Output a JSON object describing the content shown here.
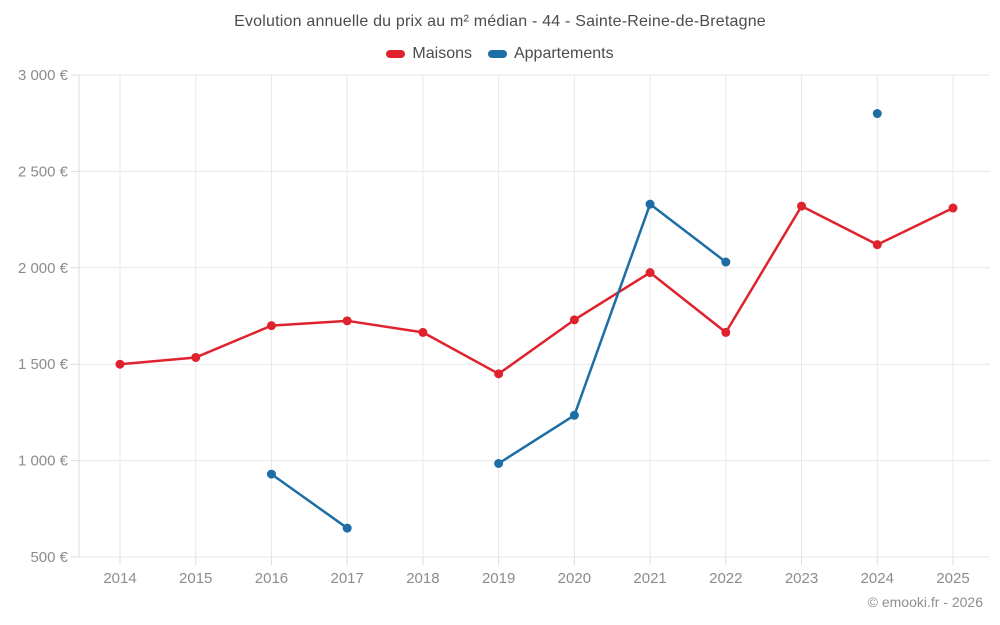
{
  "title": "Evolution annuelle du prix au m² médian - 44 - Sainte-Reine-de-Bretagne",
  "copyright": "© emooki.fr - 2026",
  "colors": {
    "maisons": "#df232e",
    "appartements": "#1c6ea4",
    "grid": "#e8e8e8",
    "axis_line": "#dcdcdc",
    "tick_text": "#8c8c8c",
    "title_text": "#4c4c4c"
  },
  "legend": {
    "items": [
      {
        "label": "Maisons",
        "color_key": "maisons"
      },
      {
        "label": "Appartements",
        "color_key": "appartements"
      }
    ]
  },
  "chart_data": {
    "type": "line",
    "categories": [
      "2014",
      "2015",
      "2016",
      "2017",
      "2018",
      "2019",
      "2020",
      "2021",
      "2022",
      "2023",
      "2024",
      "2025"
    ],
    "series": [
      {
        "name": "Maisons",
        "color_key": "maisons",
        "values": [
          1500,
          1535,
          1700,
          1725,
          1665,
          1450,
          1730,
          1975,
          1665,
          2320,
          2120,
          2310
        ]
      },
      {
        "name": "Appartements",
        "color_key": "appartements",
        "values": [
          null,
          null,
          930,
          650,
          null,
          985,
          1235,
          2330,
          2030,
          null,
          2800,
          null
        ]
      }
    ],
    "ylim": [
      500,
      3000
    ],
    "ytick_step": 500,
    "yticks": [
      500,
      1000,
      1500,
      2000,
      2500,
      3000
    ],
    "ytick_labels": [
      "500 €",
      "1 000 €",
      "1 500 €",
      "2 000 €",
      "2 500 €",
      "3 000 €"
    ],
    "xlabel": "",
    "ylabel": "",
    "grid": true,
    "legend_position": "top"
  }
}
